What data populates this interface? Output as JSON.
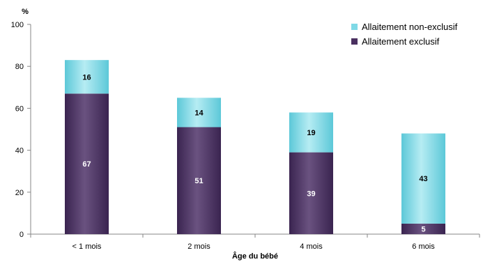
{
  "chart_data": {
    "type": "bar",
    "stacked": true,
    "categories": [
      "< 1 mois",
      "2 mois",
      "4 mois",
      "6 mois"
    ],
    "series": [
      {
        "name": "Allaitement exclusif",
        "values": [
          67,
          51,
          39,
          5
        ],
        "color": "#4a3060"
      },
      {
        "name": "Allaitement non-exclusif",
        "values": [
          16,
          14,
          19,
          43
        ],
        "color": "#7fd9e6"
      }
    ],
    "ylabel": "%",
    "xlabel": "Âge du bébé",
    "ylim": [
      0,
      100
    ],
    "yticks": [
      0,
      20,
      40,
      60,
      80,
      100
    ],
    "grid": false,
    "legend_position": "top-right"
  }
}
